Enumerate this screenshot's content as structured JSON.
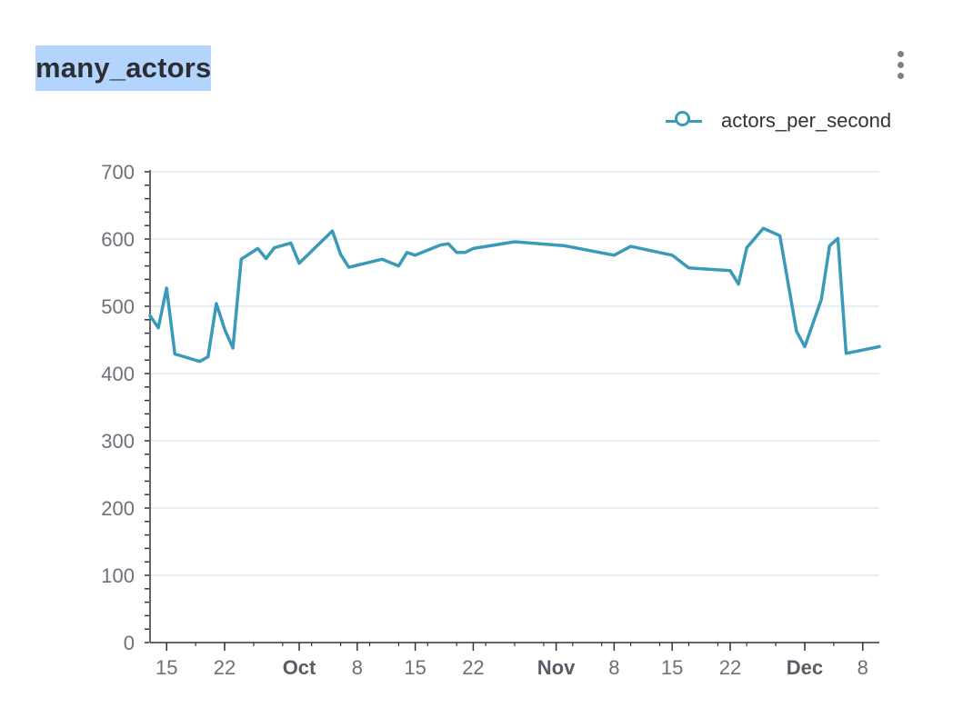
{
  "header": {
    "title": "many_actors",
    "menu_icon": "more-vertical-icon"
  },
  "legend": {
    "label": "actors_per_second",
    "icon": "circle-marker-icon",
    "color": "#3a9ab8"
  },
  "colors": {
    "series": "#3a9ab8",
    "grid": "#e0e6f1",
    "axis": "#6e7079"
  },
  "chart_data": {
    "type": "line",
    "title": "many_actors",
    "xlabel": "",
    "ylabel": "",
    "ylim": [
      0,
      700
    ],
    "yticks": [
      "0",
      "100",
      "200",
      "300",
      "400",
      "500",
      "600",
      "700"
    ],
    "xlim": [
      "2020-09-13",
      "2020-12-10"
    ],
    "xticks": [
      {
        "date": "2020-09-15",
        "label": "15",
        "major": false
      },
      {
        "date": "2020-09-22",
        "label": "22",
        "major": false
      },
      {
        "date": "2020-10-01",
        "label": "Oct",
        "major": true
      },
      {
        "date": "2020-10-08",
        "label": "8",
        "major": false
      },
      {
        "date": "2020-10-15",
        "label": "15",
        "major": false
      },
      {
        "date": "2020-10-22",
        "label": "22",
        "major": false
      },
      {
        "date": "2020-11-01",
        "label": "Nov",
        "major": true
      },
      {
        "date": "2020-11-08",
        "label": "8",
        "major": false
      },
      {
        "date": "2020-11-15",
        "label": "15",
        "major": false
      },
      {
        "date": "2020-11-22",
        "label": "22",
        "major": false
      },
      {
        "date": "2020-12-01",
        "label": "Dec",
        "major": true
      },
      {
        "date": "2020-12-08",
        "label": "8",
        "major": false
      }
    ],
    "grid": true,
    "legend_position": "top-right",
    "series": [
      {
        "name": "actors_per_second",
        "points": [
          [
            "2020-09-13",
            486
          ],
          [
            "2020-09-14",
            468
          ],
          [
            "2020-09-15",
            527
          ],
          [
            "2020-09-16",
            429
          ],
          [
            "2020-09-19",
            418
          ],
          [
            "2020-09-20",
            425
          ],
          [
            "2020-09-21",
            504
          ],
          [
            "2020-09-22",
            466
          ],
          [
            "2020-09-23",
            438
          ],
          [
            "2020-09-24",
            570
          ],
          [
            "2020-09-26",
            586
          ],
          [
            "2020-09-27",
            571
          ],
          [
            "2020-09-28",
            587
          ],
          [
            "2020-09-30",
            594
          ],
          [
            "2020-10-01",
            564
          ],
          [
            "2020-10-05",
            612
          ],
          [
            "2020-10-06",
            577
          ],
          [
            "2020-10-07",
            558
          ],
          [
            "2020-10-11",
            570
          ],
          [
            "2020-10-13",
            560
          ],
          [
            "2020-10-14",
            580
          ],
          [
            "2020-10-15",
            576
          ],
          [
            "2020-10-18",
            591
          ],
          [
            "2020-10-19",
            593
          ],
          [
            "2020-10-20",
            580
          ],
          [
            "2020-10-21",
            580
          ],
          [
            "2020-10-22",
            586
          ],
          [
            "2020-10-27",
            596
          ],
          [
            "2020-11-02",
            590
          ],
          [
            "2020-11-08",
            576
          ],
          [
            "2020-11-10",
            589
          ],
          [
            "2020-11-15",
            576
          ],
          [
            "2020-11-17",
            557
          ],
          [
            "2020-11-22",
            553
          ],
          [
            "2020-11-23",
            533
          ],
          [
            "2020-11-24",
            587
          ],
          [
            "2020-11-26",
            616
          ],
          [
            "2020-11-28",
            605
          ],
          [
            "2020-11-30",
            463
          ],
          [
            "2020-12-01",
            440
          ],
          [
            "2020-12-03",
            510
          ],
          [
            "2020-12-04",
            590
          ],
          [
            "2020-12-05",
            601
          ],
          [
            "2020-12-06",
            430
          ],
          [
            "2020-12-10",
            440
          ]
        ]
      }
    ]
  }
}
